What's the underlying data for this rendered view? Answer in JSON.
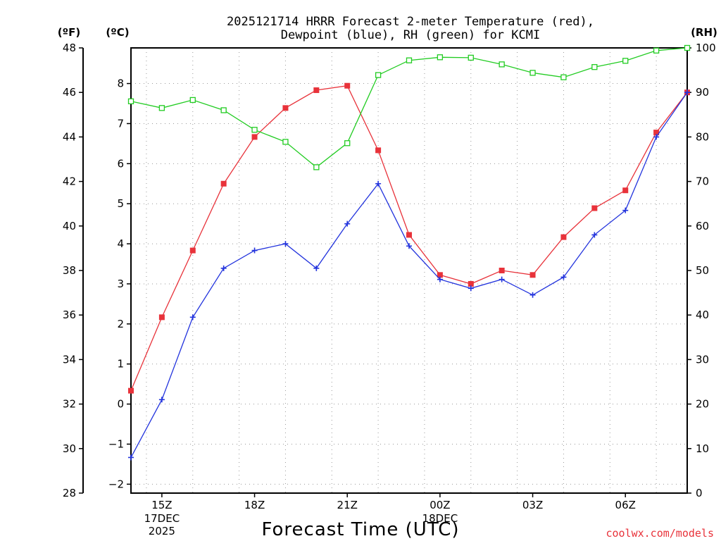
{
  "title_line1": "2025121714 HRRR Forecast 2-meter Temperature (red),",
  "title_line2": "Dewpoint (blue), RH (green) for KCMI",
  "unit_f": "(ºF)",
  "unit_c": "(ºC)",
  "unit_rh": "(RH)",
  "xlabel": "Forecast Time (UTC)",
  "credit": "coolwx.com/models",
  "colors": {
    "temperature": "#e8323a",
    "dewpoint": "#2233dd",
    "rh": "#22cc22",
    "grid": "#999999"
  },
  "chart_data": {
    "type": "line",
    "x": [
      14,
      15,
      16,
      17,
      18,
      19,
      20,
      21,
      22,
      23,
      24,
      25,
      26,
      27,
      28,
      29,
      30,
      31,
      32
    ],
    "x_tick_positions": [
      15,
      18,
      21,
      24,
      27,
      30
    ],
    "x_tick_labels": [
      "15Z",
      "18Z",
      "21Z",
      "00Z",
      "03Z",
      "06Z"
    ],
    "x_date_labels": [
      {
        "at": 15,
        "lines": [
          "17DEC",
          "2025"
        ]
      },
      {
        "at": 24,
        "lines": [
          "18DEC"
        ]
      }
    ],
    "xlim": [
      14,
      32
    ],
    "axes": {
      "fahrenheit": {
        "range": [
          28,
          48
        ],
        "ticks": [
          28,
          30,
          32,
          34,
          36,
          38,
          40,
          42,
          44,
          46,
          48
        ]
      },
      "celsius": {
        "range": [
          -2.2222,
          8.8889
        ],
        "ticks": [
          -2,
          -1,
          0,
          1,
          2,
          3,
          4,
          5,
          6,
          7,
          8
        ]
      },
      "rh": {
        "range": [
          0,
          100
        ],
        "ticks": [
          0,
          10,
          20,
          30,
          40,
          50,
          60,
          70,
          80,
          90,
          100
        ]
      }
    },
    "series": [
      {
        "name": "Temperature",
        "units": "F",
        "axis": "fahrenheit",
        "marker": "filled-square",
        "values": [
          32.6,
          35.9,
          38.9,
          41.9,
          44.0,
          45.3,
          46.1,
          46.3,
          43.4,
          39.6,
          37.8,
          37.4,
          38.0,
          37.8,
          39.5,
          40.8,
          41.6,
          44.2,
          46.0
        ]
      },
      {
        "name": "Dewpoint",
        "units": "F",
        "axis": "fahrenheit",
        "marker": "plus",
        "values": [
          29.6,
          32.2,
          35.9,
          38.1,
          38.9,
          39.2,
          38.1,
          40.1,
          41.9,
          39.1,
          37.6,
          37.2,
          37.6,
          36.9,
          37.7,
          39.6,
          40.7,
          44.0,
          46.0
        ]
      },
      {
        "name": "RH",
        "units": "%",
        "axis": "rh",
        "marker": "open-square",
        "values": [
          88,
          86.5,
          88.3,
          86,
          81.6,
          78.9,
          73.2,
          78.6,
          93.9,
          97.2,
          97.9,
          97.8,
          96.3,
          94.4,
          93.4,
          95.7,
          97.1,
          99.4,
          100
        ]
      }
    ]
  }
}
